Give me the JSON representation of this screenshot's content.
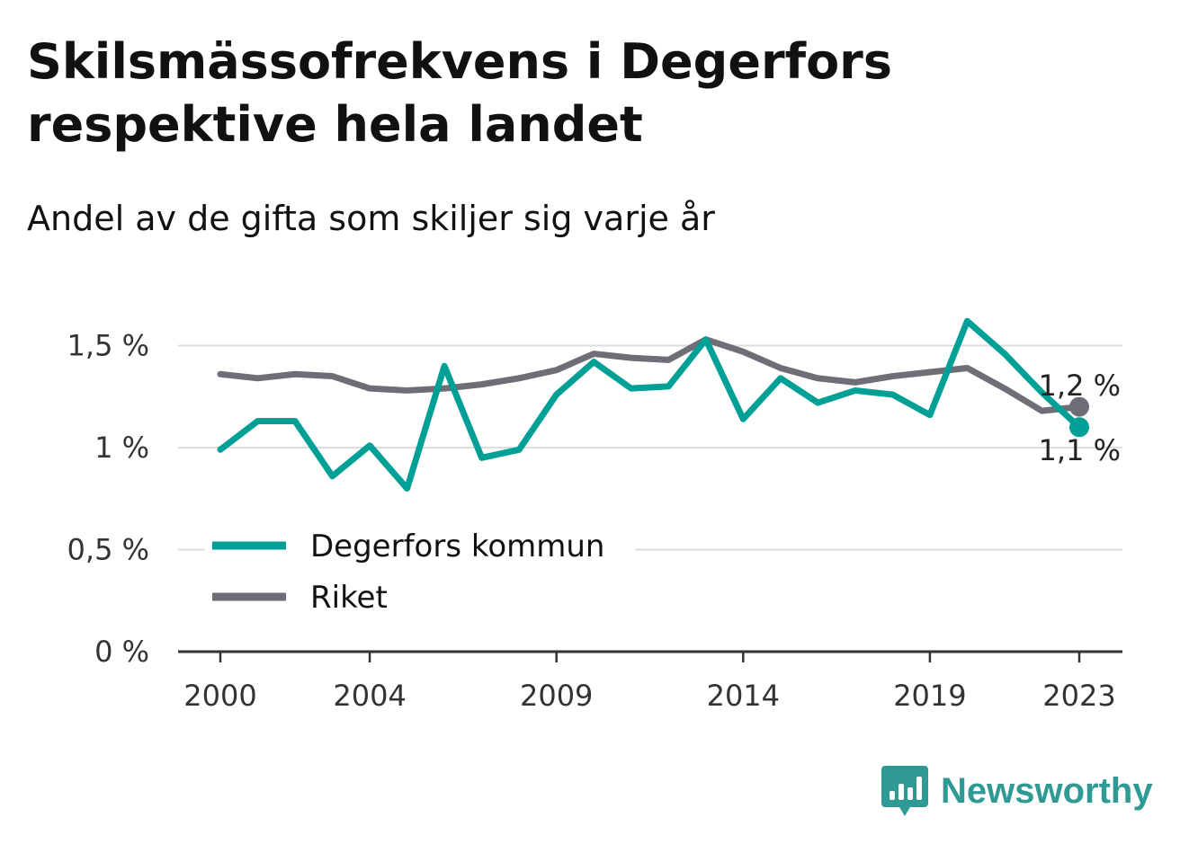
{
  "title": "Skilsmässofrekvens i Degerfors respektive hela landet",
  "subtitle": "Andel av de gifta som skiljer sig varje år",
  "brand": {
    "name": "Newsworthy",
    "icon": "bar-chart-speech-bubble-icon"
  },
  "colors": {
    "degerfors": "#00a096",
    "riket": "#6f6d75",
    "grid": "#dddddd",
    "axis": "#333333",
    "brand": "#2e9a93"
  },
  "chart_data": {
    "type": "line",
    "title": "Skilsmässofrekvens i Degerfors respektive hela landet",
    "subtitle": "Andel av de gifta som skiljer sig varje år",
    "x": [
      2000,
      2001,
      2002,
      2003,
      2004,
      2005,
      2006,
      2007,
      2008,
      2009,
      2010,
      2011,
      2012,
      2013,
      2014,
      2015,
      2016,
      2017,
      2018,
      2019,
      2020,
      2021,
      2022,
      2023
    ],
    "x_ticks": [
      2000,
      2004,
      2009,
      2014,
      2019,
      2023
    ],
    "x_tick_labels": [
      "2000",
      "2004",
      "2009",
      "2014",
      "2019",
      "2023"
    ],
    "y_ticks": [
      0,
      0.5,
      1,
      1.5
    ],
    "y_tick_labels": [
      "0 %",
      "0,5 %",
      "1 %",
      "1,5 %"
    ],
    "ylim": [
      0,
      1.6
    ],
    "xlim": [
      2000,
      2023
    ],
    "grid": true,
    "legend": "inside, lower-left",
    "series": [
      {
        "name": "Degerfors kommun",
        "color": "#00a096",
        "values": [
          0.99,
          1.13,
          1.13,
          0.86,
          1.01,
          0.8,
          1.4,
          0.95,
          0.99,
          1.26,
          1.42,
          1.29,
          1.3,
          1.53,
          1.14,
          1.34,
          1.22,
          1.28,
          1.26,
          1.16,
          1.62,
          1.46,
          1.27,
          1.1
        ],
        "end_label": "1,1 %"
      },
      {
        "name": "Riket",
        "color": "#6f6d75",
        "values": [
          1.36,
          1.34,
          1.36,
          1.35,
          1.29,
          1.28,
          1.29,
          1.31,
          1.34,
          1.38,
          1.46,
          1.44,
          1.43,
          1.53,
          1.47,
          1.39,
          1.34,
          1.32,
          1.35,
          1.37,
          1.39,
          1.29,
          1.18,
          1.2
        ],
        "end_label": "1,2 %"
      }
    ]
  }
}
